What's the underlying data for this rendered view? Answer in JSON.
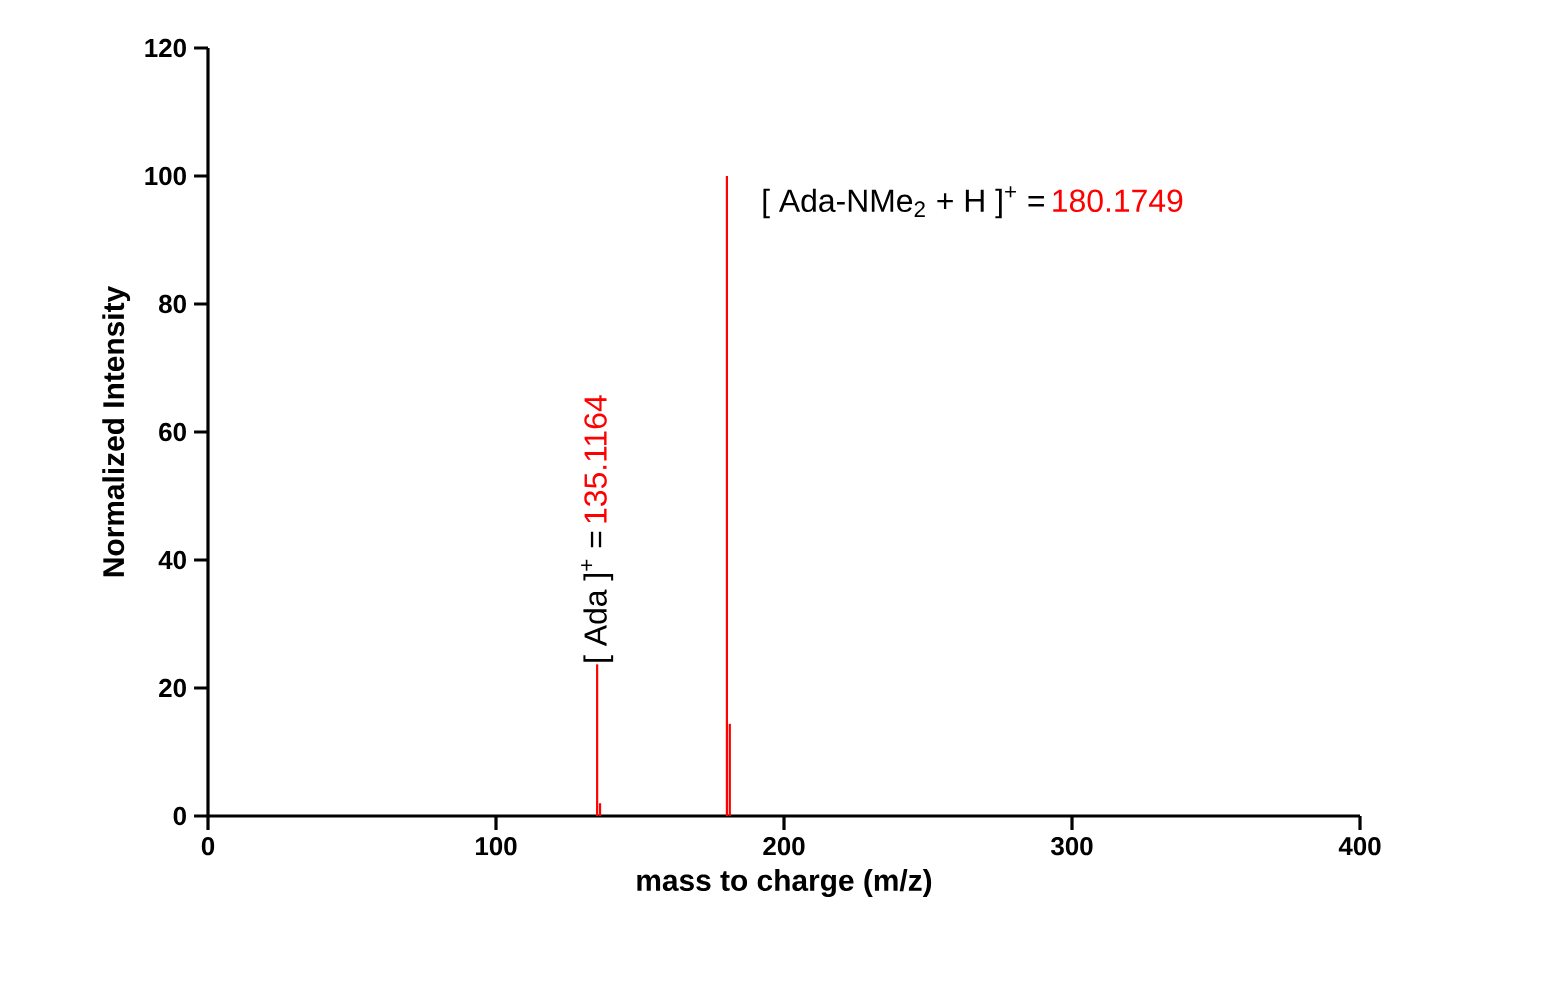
{
  "chart_data": {
    "type": "bar",
    "xlabel": "mass to charge (m/z)",
    "ylabel": "Normalized Intensity",
    "x": [
      135.1164,
      136.12,
      180.1749,
      181.18
    ],
    "series": [
      {
        "color": "#ff0000",
        "values": [
          23.7,
          2,
          100,
          14.4
        ]
      }
    ],
    "xlim": [
      0,
      400
    ],
    "xticks": [
      0,
      100,
      200,
      300,
      400
    ],
    "ylim": [
      0,
      120
    ],
    "yticks": [
      0,
      20,
      40,
      60,
      80,
      100,
      120
    ],
    "annotations": [
      {
        "text": "[ Ada ]$^{+}$ =",
        "x": 135.1164,
        "y": 23.7
      },
      "135.1164",
      {
        "text": "[ Ada-NMe$_{2}$ + H ]$^{+}$ =",
        "x": 180.1749,
        "y": 100
      },
      "180.1749"
    ]
  }
}
